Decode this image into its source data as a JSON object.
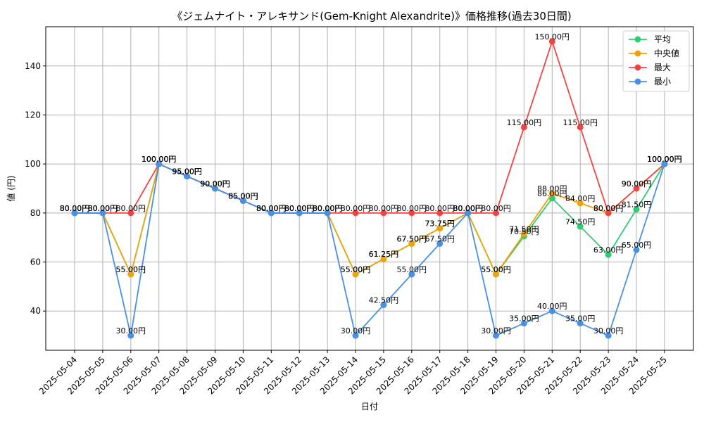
{
  "chart_data": {
    "type": "line",
    "title": "《ジェムナイト・アレキサンド(Gem-Knight Alexandrite)》価格推移(過去30日間)",
    "xlabel": "日付",
    "ylabel": "値 (円)",
    "ylim": [
      24,
      156
    ],
    "yticks": [
      40,
      60,
      80,
      100,
      120,
      140
    ],
    "grid": true,
    "legend_position": "top-right",
    "value_suffix": "円",
    "categories": [
      "2025-05-04",
      "2025-05-05",
      "2025-05-06",
      "2025-05-07",
      "2025-05-08",
      "2025-05-09",
      "2025-05-10",
      "2025-05-11",
      "2025-05-12",
      "2025-05-13",
      "2025-05-14",
      "2025-05-15",
      "2025-05-16",
      "2025-05-17",
      "2025-05-18",
      "2025-05-19",
      "2025-05-20",
      "2025-05-21",
      "2025-05-22",
      "2025-05-23",
      "2025-05-24",
      "2025-05-25"
    ],
    "series": [
      {
        "name": "平均",
        "color": "#2ecc71",
        "values": [
          80,
          80,
          55,
          100,
          95,
          90,
          85,
          80,
          80,
          80,
          55,
          61.25,
          67.5,
          73.75,
          80,
          55,
          70.5,
          86,
          74.5,
          63,
          81.5,
          100
        ]
      },
      {
        "name": "中央値",
        "color": "#f0a30a",
        "values": [
          80,
          80,
          55,
          100,
          95,
          90,
          85,
          80,
          80,
          80,
          55,
          61.25,
          67.5,
          73.75,
          80,
          55,
          71.5,
          88,
          84,
          80,
          90,
          100
        ]
      },
      {
        "name": "最大",
        "color": "#ef4444",
        "values": [
          80,
          80,
          80,
          100,
          95,
          90,
          85,
          80,
          80,
          80,
          80,
          80,
          80,
          80,
          80,
          80,
          115,
          150,
          115,
          80,
          90,
          100
        ]
      },
      {
        "name": "最小",
        "color": "#4a90e2",
        "values": [
          80,
          80,
          30,
          100,
          95,
          90,
          85,
          80,
          80,
          80,
          30,
          42.5,
          55,
          67.5,
          80,
          30,
          35,
          40,
          35,
          30,
          65,
          100
        ]
      }
    ]
  }
}
